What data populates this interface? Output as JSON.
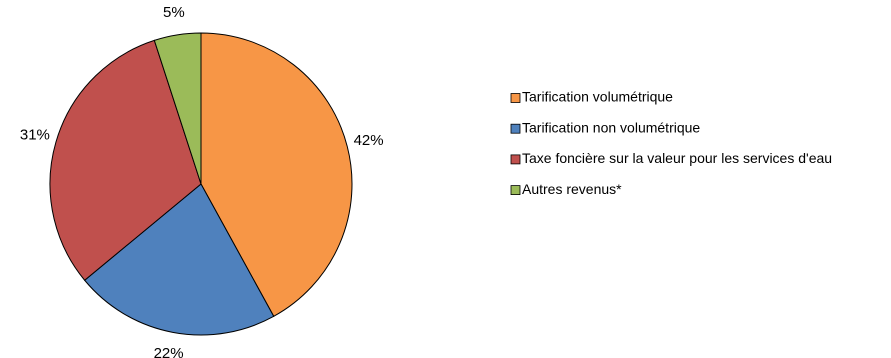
{
  "chart_data": {
    "type": "pie",
    "title": "",
    "legend_position": "right",
    "slices": [
      {
        "label": "Tarification volumétrique",
        "value": 42,
        "display": "42%",
        "color": "#F79646"
      },
      {
        "label": "Tarification non volumétrique",
        "value": 22,
        "display": "22%",
        "color": "#4F81BD"
      },
      {
        "label": "Taxe foncière sur la valeur pour les services d'eau",
        "value": 31,
        "display": "31%",
        "color": "#C0504D"
      },
      {
        "label": "Autres revenus*",
        "value": 5,
        "display": "5%",
        "color": "#9BBB59"
      }
    ]
  }
}
